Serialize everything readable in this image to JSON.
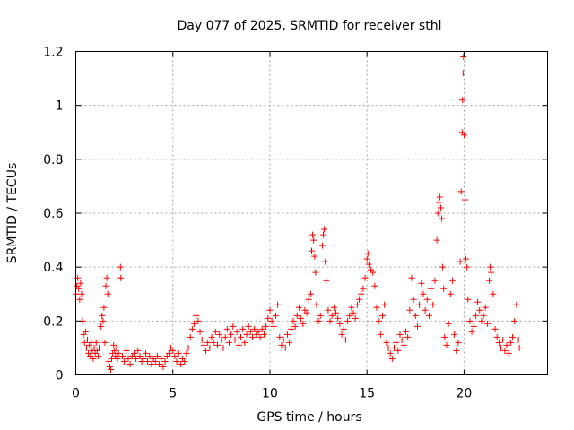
{
  "chart_data": {
    "type": "scatter",
    "title": "Day 077 of 2025, SRMTID for receiver sthl",
    "xlabel": "GPS time / hours",
    "ylabel": "SRMTID / TECUs",
    "xlim": [
      0,
      24.3
    ],
    "ylim": [
      0,
      1.2
    ],
    "xticks": [
      0,
      5,
      10,
      15,
      20
    ],
    "xtick_labels": [
      "0",
      "5",
      "10",
      "15",
      "20"
    ],
    "yticks": [
      0,
      0.2,
      0.4,
      0.6,
      0.8,
      1.0,
      1.2
    ],
    "ytick_labels": [
      "0",
      "0.2",
      "0.4",
      "0.6",
      "0.8",
      "1",
      "1.2"
    ],
    "grid": true,
    "marker": "+",
    "color": "#ff0000",
    "series": [
      {
        "name": "SRMTID",
        "description_points_format": "[hours, TECUs]",
        "points": [
          [
            0.0,
            0.3
          ],
          [
            0.05,
            0.33
          ],
          [
            0.1,
            0.36
          ],
          [
            0.15,
            0.32
          ],
          [
            0.2,
            0.28
          ],
          [
            0.25,
            0.34
          ],
          [
            0.3,
            0.3
          ],
          [
            0.35,
            0.2
          ],
          [
            0.4,
            0.15
          ],
          [
            0.45,
            0.12
          ],
          [
            0.5,
            0.16
          ],
          [
            0.55,
            0.1
          ],
          [
            0.6,
            0.13
          ],
          [
            0.65,
            0.08
          ],
          [
            0.7,
            0.11
          ],
          [
            0.75,
            0.07
          ],
          [
            0.8,
            0.12
          ],
          [
            0.85,
            0.09
          ],
          [
            0.9,
            0.06
          ],
          [
            0.95,
            0.1
          ],
          [
            1.0,
            0.08
          ],
          [
            1.05,
            0.12
          ],
          [
            1.1,
            0.09
          ],
          [
            1.15,
            0.07
          ],
          [
            1.2,
            0.1
          ],
          [
            1.25,
            0.13
          ],
          [
            1.3,
            0.18
          ],
          [
            1.35,
            0.22
          ],
          [
            1.4,
            0.2
          ],
          [
            1.45,
            0.25
          ],
          [
            1.5,
            0.12
          ],
          [
            1.55,
            0.33
          ],
          [
            1.6,
            0.36
          ],
          [
            1.65,
            0.3
          ],
          [
            1.7,
            0.05
          ],
          [
            1.75,
            0.03
          ],
          [
            1.8,
            0.02
          ],
          [
            1.85,
            0.06
          ],
          [
            1.9,
            0.08
          ],
          [
            1.95,
            0.11
          ],
          [
            2.0,
            0.09
          ],
          [
            2.05,
            0.07
          ],
          [
            2.1,
            0.1
          ],
          [
            2.15,
            0.06
          ],
          [
            2.2,
            0.08
          ],
          [
            2.3,
            0.4
          ],
          [
            2.32,
            0.36
          ],
          [
            2.4,
            0.07
          ],
          [
            2.5,
            0.05
          ],
          [
            2.6,
            0.09
          ],
          [
            2.7,
            0.06
          ],
          [
            2.8,
            0.04
          ],
          [
            2.9,
            0.07
          ],
          [
            3.0,
            0.08
          ],
          [
            3.1,
            0.06
          ],
          [
            3.2,
            0.09
          ],
          [
            3.3,
            0.07
          ],
          [
            3.4,
            0.05
          ],
          [
            3.5,
            0.06
          ],
          [
            3.6,
            0.08
          ],
          [
            3.7,
            0.05
          ],
          [
            3.8,
            0.07
          ],
          [
            3.9,
            0.04
          ],
          [
            4.0,
            0.06
          ],
          [
            4.1,
            0.05
          ],
          [
            4.2,
            0.07
          ],
          [
            4.3,
            0.04
          ],
          [
            4.4,
            0.06
          ],
          [
            4.5,
            0.03
          ],
          [
            4.6,
            0.05
          ],
          [
            4.7,
            0.07
          ],
          [
            4.8,
            0.08
          ],
          [
            4.9,
            0.1
          ],
          [
            5.0,
            0.09
          ],
          [
            5.1,
            0.07
          ],
          [
            5.2,
            0.05
          ],
          [
            5.3,
            0.08
          ],
          [
            5.4,
            0.04
          ],
          [
            5.5,
            0.06
          ],
          [
            5.6,
            0.05
          ],
          [
            5.7,
            0.08
          ],
          [
            5.8,
            0.1
          ],
          [
            5.9,
            0.14
          ],
          [
            6.0,
            0.17
          ],
          [
            6.1,
            0.19
          ],
          [
            6.2,
            0.22
          ],
          [
            6.3,
            0.2
          ],
          [
            6.4,
            0.16
          ],
          [
            6.5,
            0.13
          ],
          [
            6.6,
            0.11
          ],
          [
            6.7,
            0.09
          ],
          [
            6.8,
            0.12
          ],
          [
            6.9,
            0.1
          ],
          [
            7.0,
            0.14
          ],
          [
            7.1,
            0.12
          ],
          [
            7.2,
            0.16
          ],
          [
            7.3,
            0.11
          ],
          [
            7.4,
            0.15
          ],
          [
            7.5,
            0.13
          ],
          [
            7.6,
            0.1
          ],
          [
            7.7,
            0.14
          ],
          [
            7.8,
            0.17
          ],
          [
            7.9,
            0.12
          ],
          [
            8.0,
            0.15
          ],
          [
            8.1,
            0.18
          ],
          [
            8.2,
            0.13
          ],
          [
            8.3,
            0.16
          ],
          [
            8.4,
            0.11
          ],
          [
            8.5,
            0.14
          ],
          [
            8.6,
            0.17
          ],
          [
            8.7,
            0.12
          ],
          [
            8.8,
            0.15
          ],
          [
            8.9,
            0.18
          ],
          [
            9.0,
            0.16
          ],
          [
            9.1,
            0.14
          ],
          [
            9.2,
            0.17
          ],
          [
            9.3,
            0.15
          ],
          [
            9.4,
            0.16
          ],
          [
            9.5,
            0.14
          ],
          [
            9.6,
            0.17
          ],
          [
            9.7,
            0.15
          ],
          [
            9.8,
            0.18
          ],
          [
            9.9,
            0.21
          ],
          [
            10.0,
            0.24
          ],
          [
            10.1,
            0.2
          ],
          [
            10.2,
            0.18
          ],
          [
            10.3,
            0.22
          ],
          [
            10.4,
            0.26
          ],
          [
            10.5,
            0.14
          ],
          [
            10.6,
            0.11
          ],
          [
            10.7,
            0.13
          ],
          [
            10.8,
            0.1
          ],
          [
            10.9,
            0.15
          ],
          [
            11.0,
            0.12
          ],
          [
            11.1,
            0.17
          ],
          [
            11.2,
            0.2
          ],
          [
            11.3,
            0.18
          ],
          [
            11.4,
            0.22
          ],
          [
            11.5,
            0.25
          ],
          [
            11.6,
            0.21
          ],
          [
            11.7,
            0.19
          ],
          [
            11.8,
            0.24
          ],
          [
            11.9,
            0.23
          ],
          [
            12.0,
            0.28
          ],
          [
            12.1,
            0.3
          ],
          [
            12.15,
            0.46
          ],
          [
            12.2,
            0.52
          ],
          [
            12.25,
            0.5
          ],
          [
            12.3,
            0.44
          ],
          [
            12.35,
            0.38
          ],
          [
            12.4,
            0.26
          ],
          [
            12.5,
            0.2
          ],
          [
            12.6,
            0.22
          ],
          [
            12.7,
            0.48
          ],
          [
            12.75,
            0.52
          ],
          [
            12.8,
            0.54
          ],
          [
            12.85,
            0.42
          ],
          [
            12.9,
            0.35
          ],
          [
            13.0,
            0.24
          ],
          [
            13.1,
            0.2
          ],
          [
            13.2,
            0.22
          ],
          [
            13.3,
            0.25
          ],
          [
            13.4,
            0.23
          ],
          [
            13.5,
            0.21
          ],
          [
            13.6,
            0.19
          ],
          [
            13.7,
            0.15
          ],
          [
            13.8,
            0.17
          ],
          [
            13.9,
            0.13
          ],
          [
            14.0,
            0.2
          ],
          [
            14.1,
            0.22
          ],
          [
            14.2,
            0.25
          ],
          [
            14.3,
            0.23
          ],
          [
            14.4,
            0.21
          ],
          [
            14.5,
            0.26
          ],
          [
            14.6,
            0.28
          ],
          [
            14.7,
            0.3
          ],
          [
            14.8,
            0.32
          ],
          [
            14.9,
            0.36
          ],
          [
            15.0,
            0.43
          ],
          [
            15.05,
            0.45
          ],
          [
            15.1,
            0.41
          ],
          [
            15.2,
            0.39
          ],
          [
            15.3,
            0.38
          ],
          [
            15.4,
            0.33
          ],
          [
            15.5,
            0.25
          ],
          [
            15.6,
            0.2
          ],
          [
            15.7,
            0.15
          ],
          [
            15.8,
            0.22
          ],
          [
            15.9,
            0.26
          ],
          [
            16.0,
            0.12
          ],
          [
            16.1,
            0.1
          ],
          [
            16.2,
            0.08
          ],
          [
            16.3,
            0.06
          ],
          [
            16.4,
            0.1
          ],
          [
            16.5,
            0.12
          ],
          [
            16.6,
            0.09
          ],
          [
            16.7,
            0.15
          ],
          [
            16.8,
            0.13
          ],
          [
            16.9,
            0.11
          ],
          [
            17.0,
            0.16
          ],
          [
            17.1,
            0.14
          ],
          [
            17.2,
            0.24
          ],
          [
            17.3,
            0.36
          ],
          [
            17.4,
            0.28
          ],
          [
            17.5,
            0.22
          ],
          [
            17.6,
            0.18
          ],
          [
            17.7,
            0.26
          ],
          [
            17.8,
            0.34
          ],
          [
            17.9,
            0.3
          ],
          [
            18.0,
            0.24
          ],
          [
            18.1,
            0.28
          ],
          [
            18.2,
            0.22
          ],
          [
            18.3,
            0.32
          ],
          [
            18.4,
            0.26
          ],
          [
            18.5,
            0.35
          ],
          [
            18.6,
            0.5
          ],
          [
            18.65,
            0.6
          ],
          [
            18.7,
            0.64
          ],
          [
            18.75,
            0.66
          ],
          [
            18.8,
            0.62
          ],
          [
            18.85,
            0.58
          ],
          [
            18.9,
            0.4
          ],
          [
            18.95,
            0.32
          ],
          [
            19.0,
            0.14
          ],
          [
            19.1,
            0.11
          ],
          [
            19.2,
            0.19
          ],
          [
            19.3,
            0.3
          ],
          [
            19.4,
            0.35
          ],
          [
            19.5,
            0.15
          ],
          [
            19.6,
            0.09
          ],
          [
            19.7,
            0.12
          ],
          [
            19.8,
            0.42
          ],
          [
            19.85,
            0.68
          ],
          [
            19.9,
            0.9
          ],
          [
            19.92,
            1.02
          ],
          [
            19.95,
            1.12
          ],
          [
            19.97,
            1.18
          ],
          [
            20.0,
            0.89
          ],
          [
            20.05,
            0.65
          ],
          [
            20.1,
            0.43
          ],
          [
            20.15,
            0.4
          ],
          [
            20.2,
            0.28
          ],
          [
            20.3,
            0.2
          ],
          [
            20.4,
            0.16
          ],
          [
            20.5,
            0.18
          ],
          [
            20.6,
            0.22
          ],
          [
            20.7,
            0.27
          ],
          [
            20.8,
            0.24
          ],
          [
            20.9,
            0.2
          ],
          [
            21.0,
            0.22
          ],
          [
            21.1,
            0.25
          ],
          [
            21.2,
            0.19
          ],
          [
            21.3,
            0.35
          ],
          [
            21.35,
            0.4
          ],
          [
            21.4,
            0.38
          ],
          [
            21.5,
            0.3
          ],
          [
            21.6,
            0.17
          ],
          [
            21.7,
            0.14
          ],
          [
            21.8,
            0.12
          ],
          [
            21.9,
            0.1
          ],
          [
            22.0,
            0.13
          ],
          [
            22.1,
            0.09
          ],
          [
            22.2,
            0.11
          ],
          [
            22.3,
            0.08
          ],
          [
            22.4,
            0.12
          ],
          [
            22.5,
            0.14
          ],
          [
            22.6,
            0.2
          ],
          [
            22.7,
            0.26
          ],
          [
            22.8,
            0.13
          ],
          [
            22.85,
            0.1
          ]
        ]
      }
    ]
  }
}
